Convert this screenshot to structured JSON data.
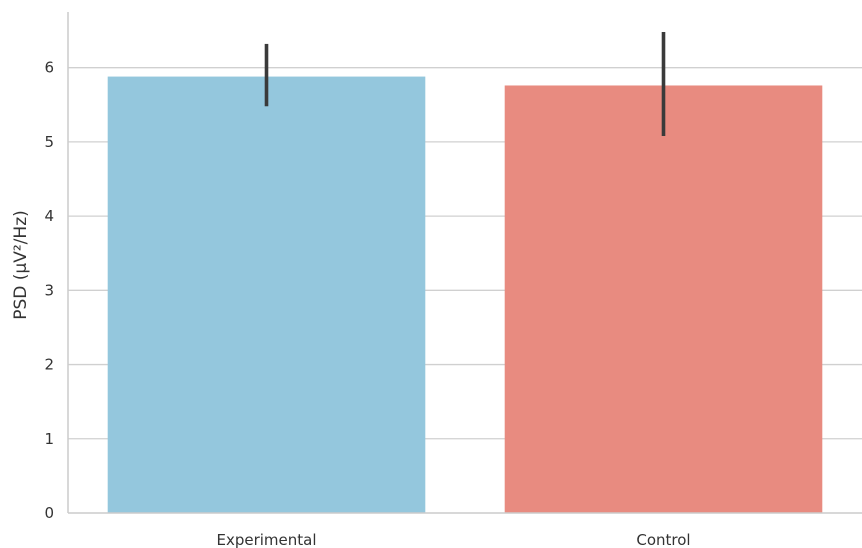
{
  "chart_data": {
    "type": "bar",
    "categories": [
      "Experimental",
      "Control"
    ],
    "values": [
      5.88,
      5.76
    ],
    "error_bars": [
      {
        "low": 5.48,
        "high": 6.32
      },
      {
        "low": 5.08,
        "high": 6.48
      }
    ],
    "colors": [
      "#94C7DD",
      "#E88B80"
    ],
    "error_bar_color": "#3a3a3a",
    "xlabel": "",
    "ylabel": "PSD (μV²/Hz)",
    "ylim": [
      0,
      6.75
    ],
    "yticks": [
      0,
      1,
      2,
      3,
      4,
      5,
      6
    ],
    "grid": "horizontal",
    "grid_color": "#d0d0d0",
    "axis_color": "#cccccc"
  }
}
